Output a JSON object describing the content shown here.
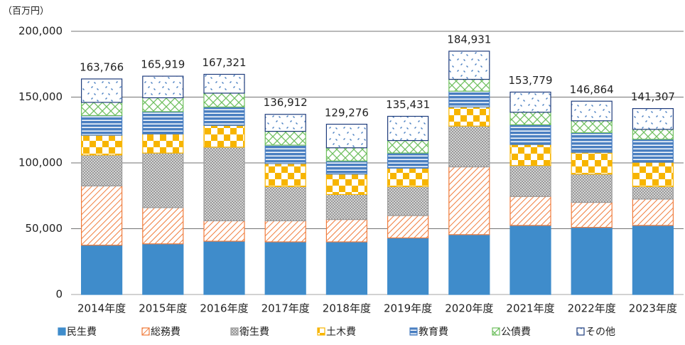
{
  "chart_data": {
    "type": "stacked_bar",
    "unit_label": "（百万円）",
    "categories": [
      "2014年度",
      "2015年度",
      "2016年度",
      "2017年度",
      "2018年度",
      "2019年度",
      "2020年度",
      "2021年度",
      "2022年度",
      "2023年度"
    ],
    "series": [
      {
        "name": "民生費",
        "color": "#3f8ccb",
        "pattern": "solid",
        "values": [
          37500,
          38500,
          40500,
          40000,
          40000,
          43000,
          45500,
          52500,
          51000,
          52500
        ]
      },
      {
        "name": "総務費",
        "color": "#f07c3c",
        "pattern": "diagonal",
        "values": [
          45000,
          27500,
          15500,
          16000,
          17000,
          17000,
          51500,
          22000,
          19000,
          20000
        ]
      },
      {
        "name": "衛生費",
        "color": "#9a9a9a",
        "pattern": "dots",
        "values": [
          23500,
          41500,
          56000,
          26000,
          19000,
          22000,
          31000,
          23500,
          21500,
          9500
        ]
      },
      {
        "name": "土木費",
        "color": "#f7b500",
        "pattern": "checker",
        "values": [
          15000,
          14500,
          16500,
          17500,
          15500,
          14000,
          14500,
          16000,
          16500,
          18500
        ]
      },
      {
        "name": "教育費",
        "color": "#4a7fc1",
        "pattern": "hstripes",
        "values": [
          15000,
          17000,
          14000,
          14000,
          10000,
          11500,
          12000,
          15000,
          15000,
          17500
        ]
      },
      {
        "name": "公債費",
        "color": "#6fbf5f",
        "pattern": "cross",
        "values": [
          10000,
          10500,
          10500,
          10500,
          10000,
          9500,
          9000,
          9500,
          9000,
          7500
        ]
      },
      {
        "name": "その他",
        "color": "#1f3c7c",
        "pattern": "scatter",
        "values": [
          17800,
          16400,
          14300,
          12900,
          17900,
          18400,
          21400,
          15300,
          14900,
          15800
        ]
      }
    ],
    "totals": {
      "values": [
        163766,
        165919,
        167321,
        136912,
        129276,
        135431,
        184931,
        153779,
        146864,
        141307
      ],
      "value_labels": [
        "163,766",
        "165,919",
        "167,321",
        "136,912",
        "129,276",
        "135,431",
        "184,931",
        "153,779",
        "146,864",
        "141,307"
      ]
    },
    "ylim": [
      0,
      200000
    ],
    "yticks": [
      0,
      {
        "value": 50000,
        "label": "50,000"
      },
      {
        "value": 100000,
        "label": "100,000"
      },
      {
        "value": 150000,
        "label": "150,000"
      },
      {
        "value": 200000,
        "label": "200,000"
      }
    ],
    "grid": true,
    "legend": "bottom"
  }
}
